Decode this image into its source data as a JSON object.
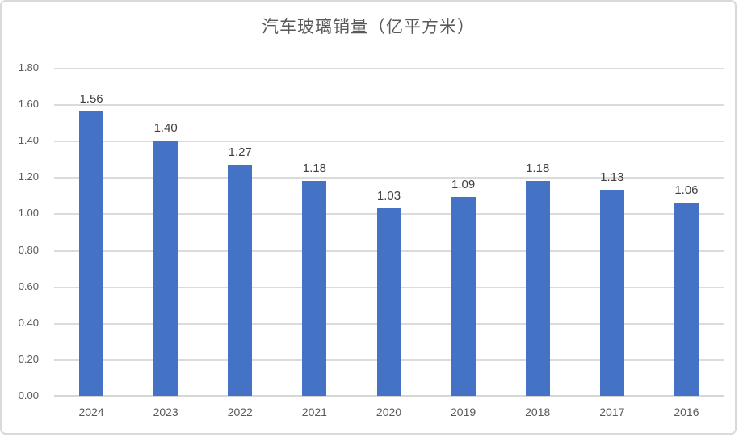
{
  "chart_data": {
    "type": "bar",
    "title": "汽车玻璃销量（亿平方米）",
    "categories": [
      "2024",
      "2023",
      "2022",
      "2021",
      "2020",
      "2019",
      "2018",
      "2017",
      "2016"
    ],
    "values": [
      1.56,
      1.4,
      1.27,
      1.18,
      1.03,
      1.09,
      1.18,
      1.13,
      1.06
    ],
    "data_labels": [
      "1.56",
      "1.40",
      "1.27",
      "1.18",
      "1.03",
      "1.09",
      "1.18",
      "1.13",
      "1.06"
    ],
    "xlabel": "",
    "ylabel": "",
    "ylim": [
      0.0,
      1.8
    ],
    "ytick_step": 0.2,
    "yticks": [
      "1.80",
      "1.60",
      "1.40",
      "1.20",
      "1.00",
      "0.80",
      "0.60",
      "0.40",
      "0.20",
      "0.00"
    ],
    "grid": true,
    "legend_position": "none",
    "colors": {
      "bar": "#4472C4",
      "gridline": "#DBDBDB",
      "axis_line": "#D6D6D6",
      "title_text": "#595959",
      "tick_label_text": "#595959",
      "data_label_text": "#404040",
      "frame_border": "#D9D9D9",
      "background": "#FFFFFF"
    }
  }
}
